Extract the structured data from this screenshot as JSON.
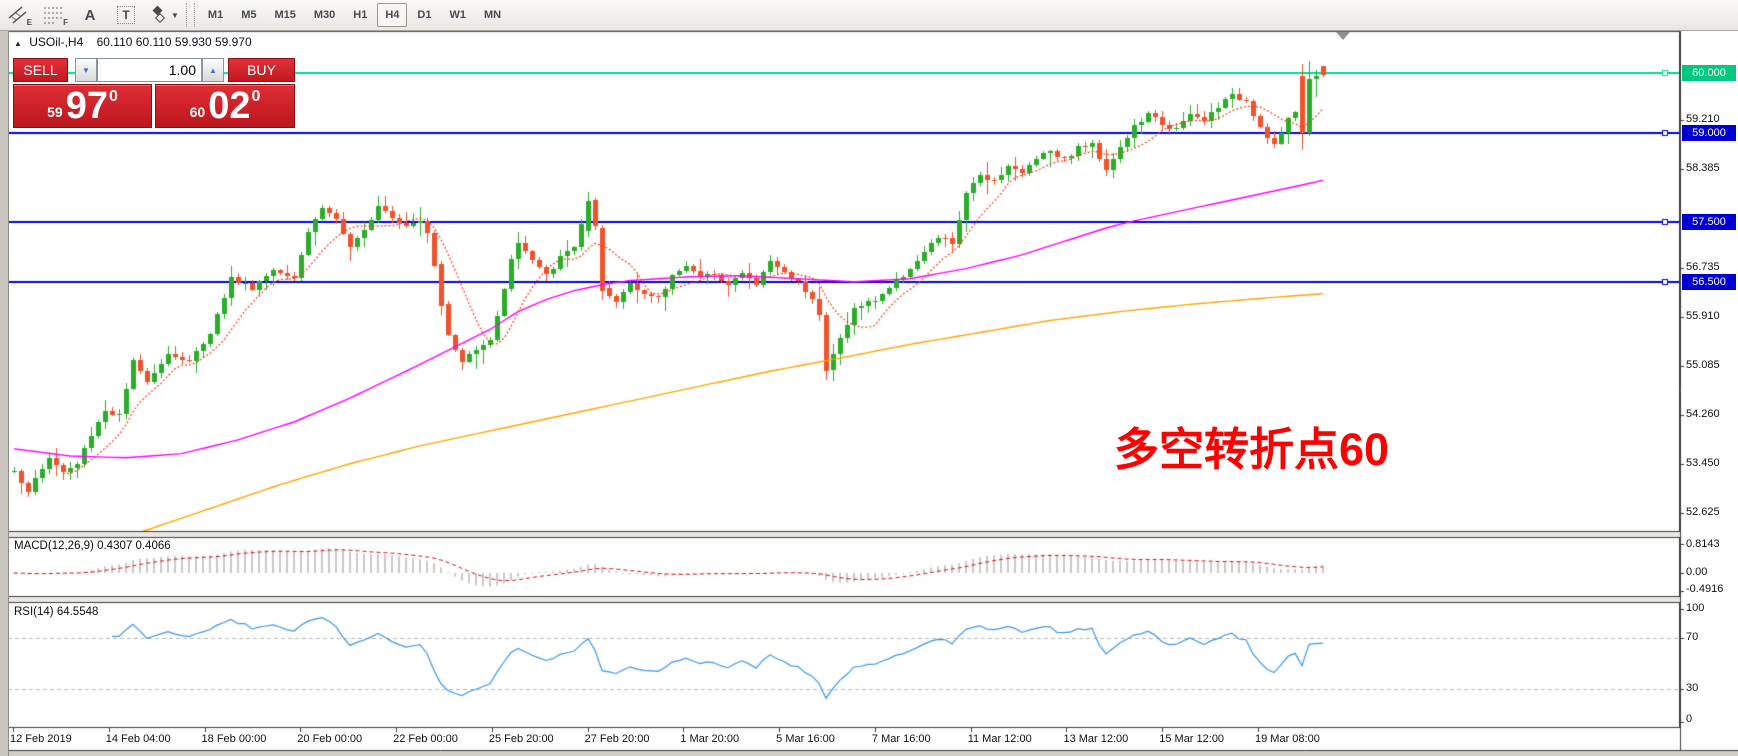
{
  "toolbar": {
    "tools": [
      {
        "name": "equidistant-channel-tool",
        "label": "E"
      },
      {
        "name": "fibonacci-tool",
        "label": "F"
      },
      {
        "name": "text-label-tool",
        "label": "A"
      },
      {
        "name": "text-box-tool",
        "label": "T"
      },
      {
        "name": "shapes-tool",
        "label": ""
      }
    ],
    "timeframes": [
      "M1",
      "M5",
      "M15",
      "M30",
      "H1",
      "H4",
      "D1",
      "W1",
      "MN"
    ],
    "active_timeframe": "H4"
  },
  "chart_title": {
    "collapse_arrow": "▲",
    "symbol": "USOil-,H4",
    "ohlc": "60.110 60.110 59.930 59.970"
  },
  "trade_panel": {
    "sell_label": "SELL",
    "buy_label": "BUY",
    "volume": "1.00",
    "sell_price": {
      "prefix": "59",
      "big": "97",
      "sup": "0"
    },
    "buy_price": {
      "prefix": "60",
      "big": "02",
      "sup": "0"
    }
  },
  "annotation": {
    "text": "多空转折点60",
    "color": "#ff0000"
  },
  "macd_panel": {
    "label": "MACD(12,26,9) 0.4307 0.4066",
    "axis_labels": [
      "0.8143",
      "0.00",
      "-0.4916"
    ]
  },
  "rsi_panel": {
    "label": "RSI(14) 64.5548",
    "axis_labels": [
      "100",
      "70",
      "30",
      "0"
    ]
  },
  "x_axis_labels": [
    "12 Feb 2019",
    "14 Feb 04:00",
    "18 Feb 00:00",
    "20 Feb 00:00",
    "22 Feb 00:00",
    "25 Feb 20:00",
    "27 Feb 20:00",
    "1 Mar 20:00",
    "5 Mar 16:00",
    "7 Mar 16:00",
    "11 Mar 12:00",
    "13 Mar 12:00",
    "15 Mar 12:00",
    "19 Mar 08:00"
  ],
  "price_axis_labels": [
    "59.210",
    "58.385",
    "56.735",
    "55.910",
    "55.085",
    "54.260",
    "53.450",
    "52.625"
  ],
  "chart_data": {
    "type": "candlestick",
    "symbol": "USOil-",
    "timeframe": "H4",
    "visible_price_range": [
      52.3,
      60.5
    ],
    "candle_count": 188,
    "seed": 1337,
    "close_anchors": [
      [
        0,
        53.35
      ],
      [
        2,
        52.95
      ],
      [
        3,
        53.2
      ],
      [
        5,
        53.55
      ],
      [
        7,
        53.3
      ],
      [
        9,
        53.45
      ],
      [
        11,
        53.95
      ],
      [
        13,
        54.35
      ],
      [
        15,
        54.25
      ],
      [
        17,
        55.15
      ],
      [
        19,
        54.85
      ],
      [
        22,
        55.3
      ],
      [
        25,
        55.15
      ],
      [
        28,
        55.65
      ],
      [
        31,
        56.55
      ],
      [
        34,
        56.4
      ],
      [
        37,
        56.7
      ],
      [
        40,
        56.6
      ],
      [
        42,
        57.35
      ],
      [
        44,
        57.75
      ],
      [
        46,
        57.55
      ],
      [
        48,
        57.05
      ],
      [
        50,
        57.35
      ],
      [
        52,
        57.8
      ],
      [
        54,
        57.6
      ],
      [
        56,
        57.45
      ],
      [
        58,
        57.55
      ],
      [
        59,
        57.35
      ],
      [
        60,
        56.8
      ],
      [
        61,
        56.1
      ],
      [
        62,
        55.6
      ],
      [
        63,
        55.35
      ],
      [
        64,
        55.15
      ],
      [
        66,
        55.4
      ],
      [
        68,
        55.55
      ],
      [
        69,
        55.9
      ],
      [
        71,
        56.9
      ],
      [
        72,
        57.15
      ],
      [
        74,
        56.85
      ],
      [
        76,
        56.6
      ],
      [
        78,
        56.9
      ],
      [
        80,
        57.1
      ],
      [
        82,
        57.85
      ],
      [
        83,
        57.4
      ],
      [
        84,
        56.35
      ],
      [
        86,
        56.15
      ],
      [
        88,
        56.5
      ],
      [
        90,
        56.3
      ],
      [
        92,
        56.2
      ],
      [
        94,
        56.6
      ],
      [
        96,
        56.8
      ],
      [
        98,
        56.55
      ],
      [
        100,
        56.65
      ],
      [
        102,
        56.45
      ],
      [
        104,
        56.65
      ],
      [
        106,
        56.45
      ],
      [
        108,
        56.85
      ],
      [
        110,
        56.65
      ],
      [
        112,
        56.5
      ],
      [
        114,
        56.25
      ],
      [
        115,
        55.95
      ],
      [
        116,
        55.0
      ],
      [
        118,
        55.55
      ],
      [
        120,
        56.05
      ],
      [
        123,
        56.2
      ],
      [
        126,
        56.5
      ],
      [
        129,
        56.85
      ],
      [
        132,
        57.25
      ],
      [
        134,
        57.15
      ],
      [
        136,
        57.95
      ],
      [
        138,
        58.3
      ],
      [
        140,
        58.2
      ],
      [
        142,
        58.45
      ],
      [
        144,
        58.3
      ],
      [
        146,
        58.6
      ],
      [
        148,
        58.7
      ],
      [
        150,
        58.55
      ],
      [
        152,
        58.75
      ],
      [
        154,
        58.8
      ],
      [
        156,
        58.4
      ],
      [
        158,
        58.75
      ],
      [
        160,
        59.1
      ],
      [
        162,
        59.3
      ],
      [
        164,
        59.15
      ],
      [
        166,
        59.05
      ],
      [
        168,
        59.3
      ],
      [
        170,
        59.2
      ],
      [
        172,
        59.45
      ],
      [
        174,
        59.6
      ],
      [
        176,
        59.55
      ],
      [
        178,
        59.1
      ],
      [
        180,
        58.8
      ],
      [
        182,
        59.2
      ],
      [
        183,
        59.35
      ],
      [
        187,
        59.5
      ]
    ],
    "candle_overrides": [
      {
        "i": 61,
        "o": 56.8,
        "h": 56.85,
        "l": 55.95,
        "c": 56.1
      },
      {
        "i": 82,
        "o": 57.35,
        "h": 58.0,
        "l": 57.25,
        "c": 57.85
      },
      {
        "i": 84,
        "o": 57.4,
        "h": 57.45,
        "l": 56.2,
        "c": 56.35
      },
      {
        "i": 116,
        "o": 55.95,
        "h": 56.0,
        "l": 54.85,
        "c": 55.0
      },
      {
        "i": 184,
        "o": 59.95,
        "h": 60.15,
        "l": 58.7,
        "c": 59.0
      },
      {
        "i": 185,
        "o": 59.0,
        "h": 60.2,
        "l": 58.95,
        "c": 59.9
      },
      {
        "i": 186,
        "o": 59.9,
        "h": 60.05,
        "l": 59.6,
        "c": 59.95
      },
      {
        "i": 187,
        "o": 60.11,
        "h": 60.11,
        "l": 59.93,
        "c": 59.97
      }
    ],
    "horizontal_levels": [
      {
        "price": 60.0,
        "label": "60.000",
        "line_color": "#00d98b",
        "badge_color": "#00c87d"
      },
      {
        "price": 59.0,
        "label": "59.000",
        "line_color": "#0000e8",
        "badge_color": "#0000d2"
      },
      {
        "price": 57.5,
        "label": "57.500",
        "line_color": "#0000e8",
        "badge_color": "#0000d2"
      },
      {
        "price": 56.5,
        "label": "56.500",
        "line_color": "#0000e8",
        "badge_color": "#0000d2"
      }
    ],
    "moving_averages": {
      "fast": {
        "type": "sma",
        "period": 8,
        "color": "#ff3b14",
        "style": "dashed"
      },
      "mid": {
        "color": "#ff00ff",
        "anchors": [
          [
            0,
            53.7
          ],
          [
            8,
            53.58
          ],
          [
            16,
            53.55
          ],
          [
            24,
            53.62
          ],
          [
            32,
            53.85
          ],
          [
            40,
            54.15
          ],
          [
            48,
            54.55
          ],
          [
            56,
            55.0
          ],
          [
            62,
            55.35
          ],
          [
            68,
            55.7
          ],
          [
            72,
            56.0
          ],
          [
            76,
            56.2
          ],
          [
            80,
            56.35
          ],
          [
            84,
            56.45
          ],
          [
            88,
            56.52
          ],
          [
            96,
            56.58
          ],
          [
            104,
            56.6
          ],
          [
            112,
            56.55
          ],
          [
            120,
            56.5
          ],
          [
            128,
            56.55
          ],
          [
            136,
            56.72
          ],
          [
            144,
            56.95
          ],
          [
            148,
            57.1
          ],
          [
            152,
            57.25
          ],
          [
            156,
            57.4
          ],
          [
            160,
            57.52
          ],
          [
            164,
            57.62
          ],
          [
            168,
            57.72
          ],
          [
            172,
            57.82
          ],
          [
            176,
            57.92
          ],
          [
            180,
            58.02
          ],
          [
            184,
            58.12
          ],
          [
            187,
            58.2
          ]
        ]
      },
      "slow": {
        "color": "#ffa400",
        "anchors": [
          [
            18,
            52.3
          ],
          [
            28,
            52.7
          ],
          [
            38,
            53.1
          ],
          [
            48,
            53.45
          ],
          [
            58,
            53.75
          ],
          [
            68,
            54.0
          ],
          [
            78,
            54.25
          ],
          [
            88,
            54.5
          ],
          [
            98,
            54.75
          ],
          [
            108,
            55.0
          ],
          [
            118,
            55.22
          ],
          [
            128,
            55.45
          ],
          [
            138,
            55.65
          ],
          [
            148,
            55.85
          ],
          [
            158,
            56.0
          ],
          [
            168,
            56.12
          ],
          [
            178,
            56.22
          ],
          [
            187,
            56.3
          ]
        ]
      }
    },
    "macd": {
      "fast": 12,
      "slow": 26,
      "signal": 9,
      "current": 0.4307,
      "signal_current": 0.4066,
      "axis_range": [
        -0.4916,
        0.8143
      ],
      "histogram_color": "#c9c9c9",
      "signal_color": "#dd1111"
    },
    "rsi": {
      "period": 14,
      "current": 64.5548,
      "color": "#3a96ee",
      "levels": [
        70,
        30
      ],
      "axis_range": [
        0,
        100
      ]
    },
    "colors": {
      "up": "#2aae2a",
      "down": "#f1512b",
      "background": "#ffffff",
      "axis_text": "#111111",
      "level_dash": "#b8b8b8"
    }
  }
}
